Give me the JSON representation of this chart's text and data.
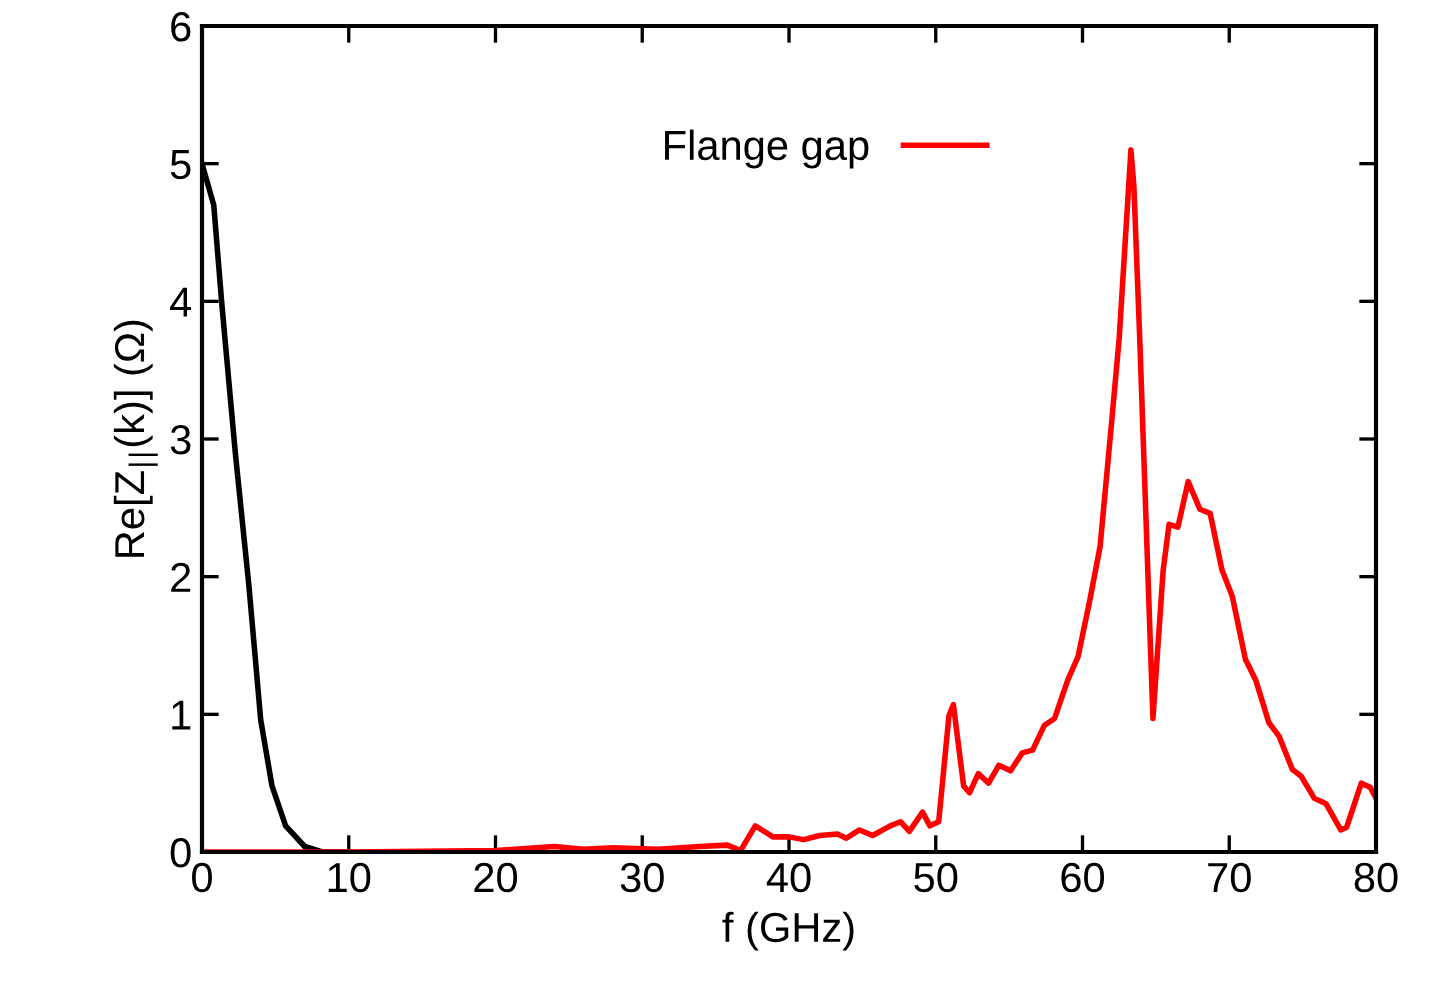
{
  "chart_data": {
    "type": "line",
    "xlabel": "f (GHz)",
    "ylabel": "Re[Z$_{||}$(k)] (Ω)",
    "xlim": [
      0,
      80
    ],
    "ylim": [
      0,
      6
    ],
    "xticks": [
      0,
      10,
      20,
      30,
      40,
      50,
      60,
      70,
      80
    ],
    "yticks": [
      0,
      1,
      2,
      3,
      4,
      5,
      6
    ],
    "grid": false,
    "legend": "top",
    "marker": "none",
    "line_style": "solid",
    "series": [
      {
        "color": "#000000",
        "x": [
          0,
          0.8,
          1.36,
          2.27,
          3.2,
          4.0,
          4.77,
          5.7,
          7.0,
          8.2,
          10
        ],
        "values": [
          5.0,
          4.7,
          3.97,
          2.9,
          1.93,
          0.96,
          0.48,
          0.19,
          0.04,
          0.0,
          0.0
        ]
      },
      {
        "name": "Flange gap",
        "color": "#ff0000",
        "x": [
          0,
          10,
          20,
          24,
          26,
          28,
          31.1,
          33.9,
          35.8,
          36.7,
          37.7,
          38.9,
          40.0,
          41.0,
          42.1,
          43.3,
          43.9,
          44.8,
          45.7,
          46.9,
          47.6,
          48.2,
          49.1,
          49.6,
          50.2,
          50.9,
          51.2,
          51.9,
          52.3,
          52.9,
          53.6,
          54.3,
          55.1,
          55.9,
          56.6,
          57.4,
          58.1,
          59.0,
          59.7,
          60.5,
          61.2,
          62.0,
          62.5,
          63.3,
          63.5,
          63.9,
          64.8,
          65.5,
          65.9,
          66.5,
          67.2,
          68.0,
          68.7,
          69.5,
          70.2,
          71.1,
          71.8,
          72.7,
          73.4,
          74.3,
          74.9,
          75.8,
          76.6,
          77.6,
          78.0,
          79.0,
          79.6,
          80.0
        ],
        "values": [
          0.0,
          0.0,
          0.01,
          0.04,
          0.02,
          0.03,
          0.02,
          0.04,
          0.05,
          0.01,
          0.19,
          0.11,
          0.11,
          0.09,
          0.12,
          0.13,
          0.1,
          0.16,
          0.12,
          0.19,
          0.22,
          0.15,
          0.29,
          0.19,
          0.22,
          0.99,
          1.07,
          0.48,
          0.43,
          0.57,
          0.5,
          0.63,
          0.59,
          0.72,
          0.74,
          0.92,
          0.97,
          1.25,
          1.42,
          1.83,
          2.22,
          3.14,
          3.73,
          5.1,
          4.84,
          3.73,
          0.97,
          2.05,
          2.38,
          2.36,
          2.69,
          2.49,
          2.46,
          2.05,
          1.86,
          1.4,
          1.25,
          0.94,
          0.84,
          0.6,
          0.55,
          0.39,
          0.35,
          0.16,
          0.18,
          0.5,
          0.47,
          0.39
        ]
      }
    ]
  }
}
